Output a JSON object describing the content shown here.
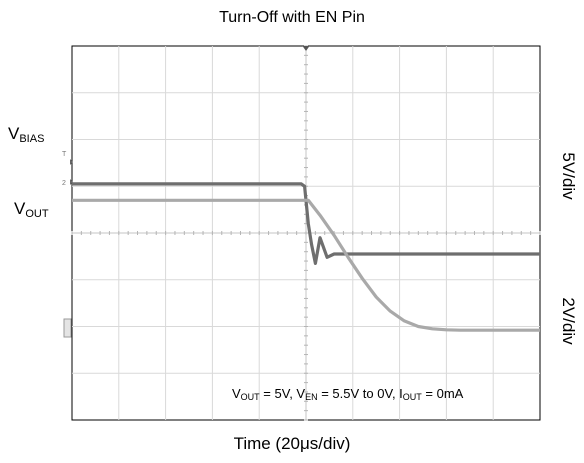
{
  "chart_data": {
    "type": "line",
    "title": "Turn-Off with EN Pin",
    "xlabel": "Time (20μs/div)",
    "grid": true,
    "divisions": {
      "x": 10,
      "y": 8
    },
    "trigger_division": 5,
    "series": [
      {
        "name": "V_BIAS",
        "label_main": "V",
        "label_sub": "BIAS",
        "color": "#6e6e6e",
        "scale": "5V/div",
        "ground_marker": "T",
        "x": [
          0,
          4.9,
          4.97,
          5.05,
          5.12,
          5.2,
          5.3,
          5.45,
          5.6,
          10
        ],
        "y": [
          5.05,
          5.05,
          5.0,
          4.2,
          3.75,
          3.35,
          3.9,
          3.48,
          3.55,
          3.55
        ]
      },
      {
        "name": "V_OUT",
        "label_main": "V",
        "label_sub": "OUT",
        "color": "#a9a9a9",
        "scale": "2V/div",
        "ground_marker": "2",
        "x": [
          0,
          5.05,
          5.3,
          5.6,
          5.9,
          6.2,
          6.5,
          6.8,
          7.1,
          7.4,
          7.7,
          8.0,
          8.3,
          10
        ],
        "y": [
          4.7,
          4.7,
          4.38,
          3.95,
          3.48,
          3.03,
          2.63,
          2.33,
          2.12,
          2.0,
          1.95,
          1.93,
          1.92,
          1.92
        ]
      }
    ],
    "annotation": {
      "parts": [
        {
          "t": "V"
        },
        {
          "sub": "OUT"
        },
        {
          "t": " = 5V, V"
        },
        {
          "sub": "EN"
        },
        {
          "t": " = 5.5V to 0V, I"
        },
        {
          "sub": "OUT"
        },
        {
          "t": " = 0mA"
        }
      ]
    }
  }
}
